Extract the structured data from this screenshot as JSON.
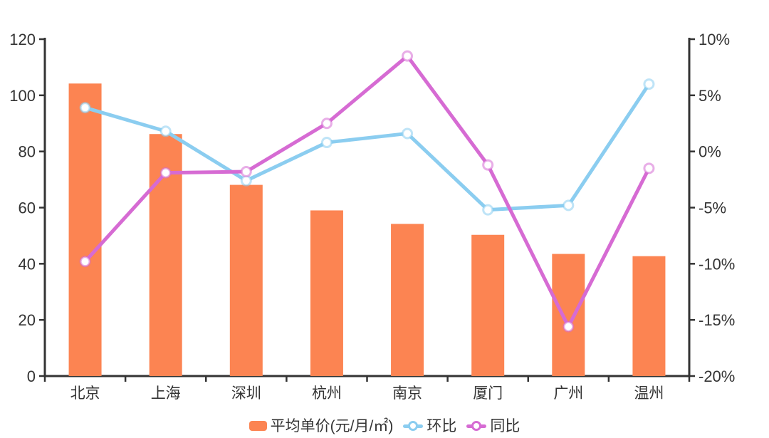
{
  "chart_data": {
    "type": "combo",
    "title": "",
    "categories": [
      "北京",
      "上海",
      "深圳",
      "杭州",
      "南京",
      "厦门",
      "广州",
      "温州"
    ],
    "series": [
      {
        "name": "平均单价(元/月/㎡)",
        "type": "bar",
        "yaxis": "left",
        "color": "#FC8452",
        "values": [
          104.2,
          86.2,
          68.1,
          59.0,
          54.2,
          50.3,
          43.5,
          42.7
        ]
      },
      {
        "name": "环比",
        "type": "line",
        "yaxis": "right",
        "color": "#8BCDF0",
        "values": [
          3.9,
          1.8,
          -2.6,
          0.8,
          1.6,
          -5.2,
          -4.8,
          6.0
        ]
      },
      {
        "name": "同比",
        "type": "line",
        "yaxis": "right",
        "color": "#D66BD3",
        "values": [
          -9.8,
          -1.9,
          -1.8,
          2.5,
          8.5,
          -1.2,
          -15.6,
          -1.5
        ]
      }
    ],
    "left_axis": {
      "min": 0,
      "max": 120,
      "tick_labels_top_to_bottom": [
        "120",
        "100",
        "80",
        "60",
        "40",
        "20",
        "0"
      ]
    },
    "right_axis": {
      "min": -20,
      "max": 10,
      "tick_labels_top_to_bottom": [
        "10%",
        "5%",
        "0%",
        "-5%",
        "-10%",
        "-15%",
        "-20%"
      ]
    },
    "legend_position": "bottom",
    "grid": false,
    "axis_color": "#333333",
    "text_color": "#333333",
    "marker_fill": "#FFFFFF",
    "background": "#FFFFFF"
  }
}
